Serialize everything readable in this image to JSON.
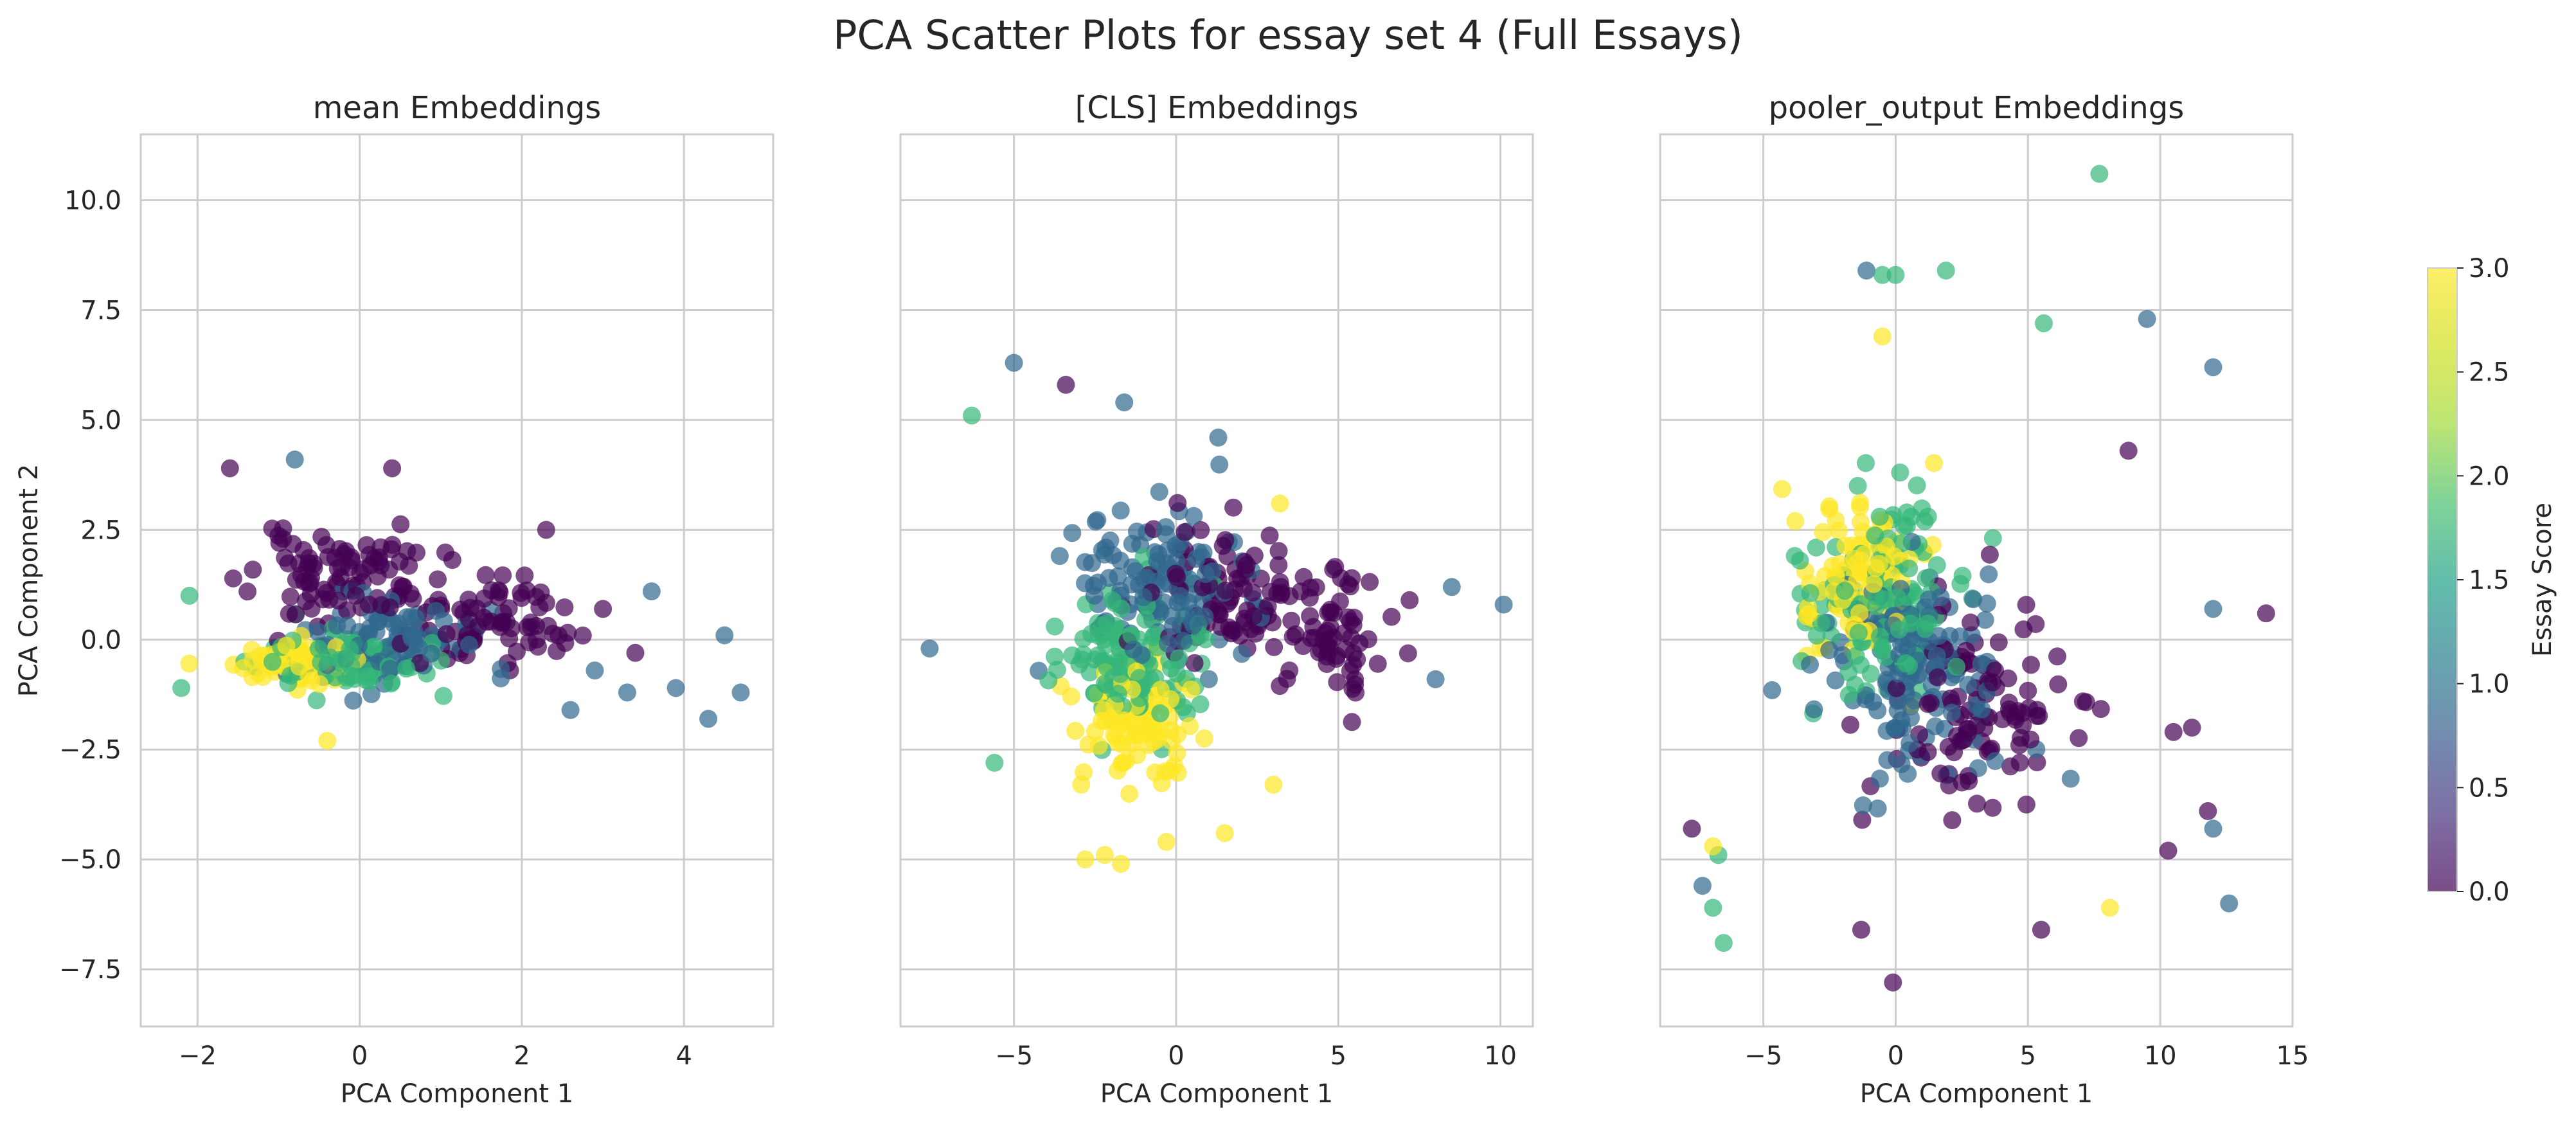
{
  "figure": {
    "suptitle": "PCA Scatter Plots for essay set 4 (Full Essays)"
  },
  "chart_data": [
    {
      "type": "scatter",
      "title": "mean Embeddings",
      "xlabel": "PCA Component 1",
      "ylabel": "PCA Component 2",
      "xlim": [
        -2.7,
        5.1
      ],
      "ylim": [
        -8.8,
        11.5
      ],
      "xticks": [
        -2,
        0,
        2,
        4
      ],
      "xtick_labels": [
        "−2",
        "0",
        "2",
        "4"
      ],
      "yticks": [
        -7.5,
        -5.0,
        -2.5,
        0.0,
        2.5,
        5.0,
        7.5,
        10.0
      ],
      "ytick_labels": [
        "−7.5",
        "−5.0",
        "−2.5",
        "0.0",
        "2.5",
        "5.0",
        "7.5",
        "10.0"
      ],
      "grid": true,
      "cluster_spec": [
        {
          "n": 95,
          "cx": -0.2,
          "cy": 1.4,
          "sx": 1.15,
          "sy": 1.0,
          "c": 0,
          "seed": 11
        },
        {
          "n": 75,
          "cx": 1.6,
          "cy": 0.4,
          "sx": 1.0,
          "sy": 0.9,
          "c": 0,
          "seed": 12
        },
        {
          "n": 100,
          "cx": 0.2,
          "cy": 0.0,
          "sx": 1.2,
          "sy": 1.0,
          "c": 1,
          "seed": 13
        },
        {
          "n": 85,
          "cx": -0.2,
          "cy": -0.5,
          "sx": 1.0,
          "sy": 0.65,
          "c": 2,
          "seed": 14
        },
        {
          "n": 70,
          "cx": -0.8,
          "cy": -0.5,
          "sx": 0.75,
          "sy": 0.55,
          "c": 3,
          "seed": 15
        }
      ],
      "points": [
        {
          "x": -0.4,
          "y": -2.3,
          "c": 3
        },
        {
          "x": 0.4,
          "y": 3.9,
          "c": 0
        },
        {
          "x": -0.8,
          "y": 4.1,
          "c": 1
        },
        {
          "x": -1.6,
          "y": 3.9,
          "c": 0
        },
        {
          "x": 2.3,
          "y": 2.5,
          "c": 0
        },
        {
          "x": 3.6,
          "y": 1.1,
          "c": 1
        },
        {
          "x": 3.9,
          "y": -1.1,
          "c": 1
        },
        {
          "x": 4.3,
          "y": -1.8,
          "c": 1
        },
        {
          "x": 4.5,
          "y": 0.1,
          "c": 1
        },
        {
          "x": 4.7,
          "y": -1.2,
          "c": 1
        },
        {
          "x": 3.4,
          "y": -0.3,
          "c": 0
        },
        {
          "x": 3.0,
          "y": 0.7,
          "c": 0
        },
        {
          "x": 2.6,
          "y": -1.6,
          "c": 1
        },
        {
          "x": -2.1,
          "y": 1.0,
          "c": 2
        },
        {
          "x": -2.2,
          "y": -1.1,
          "c": 2
        },
        {
          "x": 2.9,
          "y": -0.7,
          "c": 1
        },
        {
          "x": 3.3,
          "y": -1.2,
          "c": 1
        }
      ]
    },
    {
      "type": "scatter",
      "title": "[CLS] Embeddings",
      "xlabel": "PCA Component 1",
      "ylabel": "",
      "xlim": [
        -8.5,
        11.0
      ],
      "ylim": [
        -8.8,
        11.5
      ],
      "xticks": [
        -5,
        0,
        5,
        10
      ],
      "xtick_labels": [
        "−5",
        "0",
        "5",
        "10"
      ],
      "yticks": [
        -7.5,
        -5.0,
        -2.5,
        0.0,
        2.5,
        5.0,
        7.5,
        10.0
      ],
      "grid": true,
      "cluster_spec": [
        {
          "n": 100,
          "cx": 1.5,
          "cy": 1.0,
          "sx": 2.8,
          "sy": 1.6,
          "c": 0,
          "seed": 21
        },
        {
          "n": 60,
          "cx": 4.8,
          "cy": 0.3,
          "sx": 1.5,
          "sy": 1.3,
          "c": 0,
          "seed": 22
        },
        {
          "n": 130,
          "cx": -0.5,
          "cy": 1.2,
          "sx": 2.9,
          "sy": 1.7,
          "c": 1,
          "seed": 23
        },
        {
          "n": 110,
          "cx": -1.5,
          "cy": -0.5,
          "sx": 2.4,
          "sy": 1.5,
          "c": 2,
          "seed": 24
        },
        {
          "n": 90,
          "cx": -1.2,
          "cy": -2.0,
          "sx": 1.8,
          "sy": 1.4,
          "c": 3,
          "seed": 25
        }
      ],
      "points": [
        {
          "x": -5.0,
          "y": 6.3,
          "c": 1
        },
        {
          "x": -3.4,
          "y": 5.8,
          "c": 0
        },
        {
          "x": -6.3,
          "y": 5.1,
          "c": 2
        },
        {
          "x": 10.1,
          "y": 0.8,
          "c": 1
        },
        {
          "x": -7.6,
          "y": -0.2,
          "c": 1
        },
        {
          "x": -2.8,
          "y": -5.0,
          "c": 3
        },
        {
          "x": -2.2,
          "y": -4.9,
          "c": 3
        },
        {
          "x": -0.3,
          "y": -4.6,
          "c": 3
        },
        {
          "x": 1.5,
          "y": -4.4,
          "c": 3
        },
        {
          "x": -5.6,
          "y": -2.8,
          "c": 2
        },
        {
          "x": 8.5,
          "y": 1.2,
          "c": 1
        },
        {
          "x": 8.0,
          "y": -0.9,
          "c": 1
        },
        {
          "x": -1.6,
          "y": 5.4,
          "c": 1
        },
        {
          "x": 1.3,
          "y": 4.6,
          "c": 1
        },
        {
          "x": 3.2,
          "y": 3.1,
          "c": 3
        },
        {
          "x": -1.7,
          "y": -5.1,
          "c": 3
        },
        {
          "x": 3.0,
          "y": -3.3,
          "c": 3
        },
        {
          "x": 7.2,
          "y": 0.9,
          "c": 0
        }
      ]
    },
    {
      "type": "scatter",
      "title": "pooler_output Embeddings",
      "xlabel": "PCA Component 1",
      "ylabel": "",
      "xlim": [
        -8.9,
        15.0
      ],
      "ylim": [
        -8.8,
        11.5
      ],
      "xticks": [
        -5,
        0,
        5,
        10,
        15
      ],
      "xtick_labels": [
        "−5",
        "0",
        "5",
        "10",
        "15"
      ],
      "yticks": [
        -7.5,
        -5.0,
        -2.5,
        0.0,
        2.5,
        5.0,
        7.5,
        10.0
      ],
      "grid": true,
      "cluster_spec": [
        {
          "n": 110,
          "cx": 3.0,
          "cy": -1.5,
          "sx": 3.3,
          "sy": 2.2,
          "c": 0,
          "seed": 31
        },
        {
          "n": 150,
          "cx": 0.5,
          "cy": -0.5,
          "sx": 3.3,
          "sy": 2.3,
          "c": 1,
          "seed": 32
        },
        {
          "n": 130,
          "cx": -0.5,
          "cy": 1.0,
          "sx": 3.0,
          "sy": 2.3,
          "c": 2,
          "seed": 33
        },
        {
          "n": 100,
          "cx": -1.5,
          "cy": 1.5,
          "sx": 2.3,
          "sy": 2.1,
          "c": 3,
          "seed": 34
        }
      ],
      "points": [
        {
          "x": 7.7,
          "y": 10.6,
          "c": 2
        },
        {
          "x": -1.1,
          "y": 8.4,
          "c": 1
        },
        {
          "x": -0.5,
          "y": 8.3,
          "c": 2
        },
        {
          "x": 0.0,
          "y": 8.3,
          "c": 2
        },
        {
          "x": 1.9,
          "y": 8.4,
          "c": 2
        },
        {
          "x": 9.5,
          "y": 7.3,
          "c": 1
        },
        {
          "x": 12.0,
          "y": 6.2,
          "c": 1
        },
        {
          "x": 14.0,
          "y": 0.6,
          "c": 0
        },
        {
          "x": 12.0,
          "y": 0.7,
          "c": 1
        },
        {
          "x": 12.6,
          "y": -6.0,
          "c": 1
        },
        {
          "x": 8.1,
          "y": -6.1,
          "c": 3
        },
        {
          "x": 5.6,
          "y": 7.2,
          "c": 2
        },
        {
          "x": -0.5,
          "y": 6.9,
          "c": 3
        },
        {
          "x": -7.7,
          "y": -4.3,
          "c": 0
        },
        {
          "x": -7.3,
          "y": -5.6,
          "c": 1
        },
        {
          "x": -6.5,
          "y": -6.9,
          "c": 2
        },
        {
          "x": -6.9,
          "y": -6.1,
          "c": 2
        },
        {
          "x": -0.1,
          "y": -7.8,
          "c": 0
        },
        {
          "x": -1.3,
          "y": -6.6,
          "c": 0
        },
        {
          "x": 5.5,
          "y": -6.6,
          "c": 0
        },
        {
          "x": -6.9,
          "y": -4.7,
          "c": 3
        },
        {
          "x": -6.7,
          "y": -4.9,
          "c": 2
        },
        {
          "x": 11.8,
          "y": -3.9,
          "c": 0
        },
        {
          "x": 12.0,
          "y": -4.3,
          "c": 1
        },
        {
          "x": 11.2,
          "y": -2.0,
          "c": 0
        },
        {
          "x": 10.5,
          "y": -2.1,
          "c": 0
        },
        {
          "x": 10.3,
          "y": -4.8,
          "c": 0
        },
        {
          "x": 8.8,
          "y": 4.3,
          "c": 0
        }
      ]
    }
  ],
  "colorbar": {
    "label": "Essay Score",
    "range": [
      0.0,
      3.0
    ],
    "ticks": [
      0.0,
      0.5,
      1.0,
      1.5,
      2.0,
      2.5,
      3.0
    ],
    "tick_labels": [
      "0.0",
      "0.5",
      "1.0",
      "1.5",
      "2.0",
      "2.5",
      "3.0"
    ],
    "colormap": "viridis",
    "alpha": 0.7
  }
}
